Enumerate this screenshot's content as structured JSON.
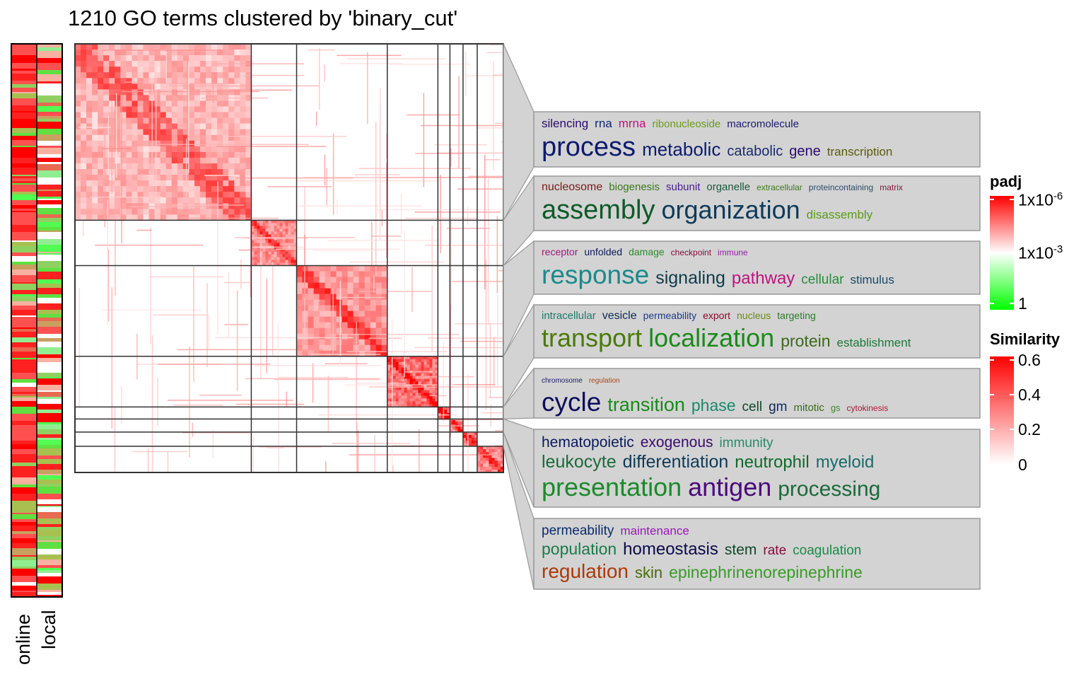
{
  "chart_data": {
    "type": "heatmap",
    "title": "1210 GO terms clustered by 'binary_cut'",
    "n_terms": 1210,
    "cluster_sizes": [
      498,
      128,
      256,
      143,
      34,
      37,
      40,
      74
    ],
    "annotation_tracks": [
      "online",
      "local"
    ],
    "similarity_legend": {
      "title": "Similarity",
      "ticks": [
        "0.6",
        "0.4",
        "0.2",
        "0"
      ],
      "range": [
        0,
        0.6
      ],
      "colors": [
        "#ffffff",
        "#ff0000"
      ]
    },
    "padj_legend": {
      "title": "padj",
      "ticks": [
        {
          "base": "1x10",
          "exp": "-6"
        },
        {
          "base": "1x10",
          "exp": "-3"
        },
        {
          "base": "1",
          "exp": ""
        }
      ],
      "colors": [
        "#ff0000",
        "#ffffff",
        "#00ff00"
      ]
    },
    "word_clouds": [
      {
        "lines": [
          [
            {
              "t": "silencing",
              "s": 17,
              "c": "#2a0a6e"
            },
            {
              "t": "rna",
              "s": 17,
              "c": "#0b2a6e"
            },
            {
              "t": "mrna",
              "s": 17,
              "c": "#c0127c"
            },
            {
              "t": "ribonucleoside",
              "s": 15,
              "c": "#6a9a1a"
            },
            {
              "t": "macromolecule",
              "s": 15,
              "c": "#1a1a6e"
            }
          ],
          [
            {
              "t": "process",
              "s": 38,
              "c": "#0d1a6e"
            },
            {
              "t": "metabolic",
              "s": 26,
              "c": "#0d1a6e"
            },
            {
              "t": "catabolic",
              "s": 20,
              "c": "#1a2a6e"
            },
            {
              "t": "gene",
              "s": 20,
              "c": "#2a0a6e"
            },
            {
              "t": "transcription",
              "s": 17,
              "c": "#5a5a0a"
            }
          ]
        ]
      },
      {
        "lines": [
          [
            {
              "t": "nucleosome",
              "s": 16,
              "c": "#7a1a1a"
            },
            {
              "t": "biogenesis",
              "s": 15,
              "c": "#3a7a1a"
            },
            {
              "t": "subunit",
              "s": 15,
              "c": "#4a1a8a"
            },
            {
              "t": "organelle",
              "s": 15,
              "c": "#1a5a3a"
            },
            {
              "t": "extracellular",
              "s": 12,
              "c": "#3a7a1a"
            },
            {
              "t": "proteincontaining",
              "s": 12,
              "c": "#2a4a6a"
            },
            {
              "t": "matrix",
              "s": 12,
              "c": "#7a1a3a"
            }
          ],
          [
            {
              "t": "assembly",
              "s": 38,
              "c": "#0e5a2a"
            },
            {
              "t": "organization",
              "s": 36,
              "c": "#0e3a5a"
            },
            {
              "t": "disassembly",
              "s": 17,
              "c": "#5a9a1a"
            }
          ]
        ]
      },
      {
        "lines": [
          [
            {
              "t": "receptor",
              "s": 14,
              "c": "#9a1a7a"
            },
            {
              "t": "unfolded",
              "s": 14,
              "c": "#0a1a5a"
            },
            {
              "t": "damage",
              "s": 14,
              "c": "#2a8a2a"
            },
            {
              "t": "checkpoint",
              "s": 12,
              "c": "#8a0a3a"
            },
            {
              "t": "immune",
              "s": 12,
              "c": "#9a1aaa"
            }
          ],
          [
            {
              "t": "response",
              "s": 37,
              "c": "#1a8a8a"
            },
            {
              "t": "signaling",
              "s": 25,
              "c": "#0e3a4a"
            },
            {
              "t": "pathway",
              "s": 24,
              "c": "#c0127c"
            },
            {
              "t": "cellular",
              "s": 19,
              "c": "#2a8a3a"
            },
            {
              "t": "stimulus",
              "s": 17,
              "c": "#1a4a6a"
            }
          ]
        ]
      },
      {
        "lines": [
          [
            {
              "t": "intracellular",
              "s": 15,
              "c": "#1a7a6a"
            },
            {
              "t": "vesicle",
              "s": 16,
              "c": "#0a2a5a"
            },
            {
              "t": "permeability",
              "s": 14,
              "c": "#1a3a8a"
            },
            {
              "t": "export",
              "s": 14,
              "c": "#8a0a2a"
            },
            {
              "t": "nucleus",
              "s": 14,
              "c": "#6a8a1a"
            },
            {
              "t": "targeting",
              "s": 14,
              "c": "#2a7a2a"
            }
          ],
          [
            {
              "t": "transport",
              "s": 36,
              "c": "#4a7a0a"
            },
            {
              "t": "localization",
              "s": 36,
              "c": "#1a8a1a"
            },
            {
              "t": "protein",
              "s": 23,
              "c": "#3a6a1a"
            },
            {
              "t": "establishment",
              "s": 17,
              "c": "#1a7a3a"
            }
          ]
        ]
      },
      {
        "lines": [
          [
            {
              "t": "chromosome",
              "s": 10,
              "c": "#1a1a6e"
            },
            {
              "t": "regulation",
              "s": 10,
              "c": "#aa4a1a"
            }
          ],
          [
            {
              "t": "cycle",
              "s": 37,
              "c": "#0d0d5e"
            },
            {
              "t": "transition",
              "s": 27,
              "c": "#1a8a1a"
            },
            {
              "t": "phase",
              "s": 23,
              "c": "#1a8a6a"
            },
            {
              "t": "cell",
              "s": 19,
              "c": "#0e4a2a"
            },
            {
              "t": "gm",
              "s": 19,
              "c": "#0a2a5a"
            },
            {
              "t": "mitotic",
              "s": 15,
              "c": "#3a6a1a"
            },
            {
              "t": "gs",
              "s": 13,
              "c": "#3a8a2a"
            },
            {
              "t": "cytokinesis",
              "s": 12,
              "c": "#aa1a3a"
            }
          ]
        ]
      },
      {
        "lines": [
          [
            {
              "t": "hematopoietic",
              "s": 21,
              "c": "#0a1a5a"
            },
            {
              "t": "exogenous",
              "s": 21,
              "c": "#3a0a6e"
            },
            {
              "t": "immunity",
              "s": 19,
              "c": "#2a8a6a"
            }
          ],
          [
            {
              "t": "leukocyte",
              "s": 25,
              "c": "#1a6a3a"
            },
            {
              "t": "differentiation",
              "s": 25,
              "c": "#0e3a5a"
            },
            {
              "t": "neutrophil",
              "s": 24,
              "c": "#0e6a2a"
            },
            {
              "t": "myeloid",
              "s": 24,
              "c": "#1a6a6a"
            }
          ],
          [
            {
              "t": "presentation",
              "s": 36,
              "c": "#1a8a2a"
            },
            {
              "t": "antigen",
              "s": 36,
              "c": "#4a0a7a"
            },
            {
              "t": "processing",
              "s": 30,
              "c": "#1a6a3a"
            }
          ]
        ]
      },
      {
        "lines": [
          [
            {
              "t": "permeability",
              "s": 19,
              "c": "#0a2a6e"
            },
            {
              "t": "maintenance",
              "s": 17,
              "c": "#9a1aba"
            }
          ],
          [
            {
              "t": "population",
              "s": 23,
              "c": "#1a7a4a"
            },
            {
              "t": "homeostasis",
              "s": 24,
              "c": "#0a0a4a"
            },
            {
              "t": "stem",
              "s": 21,
              "c": "#0e4a2a"
            },
            {
              "t": "rate",
              "s": 19,
              "c": "#8a0a3a"
            },
            {
              "t": "coagulation",
              "s": 19,
              "c": "#1a8a4a"
            }
          ],
          [
            {
              "t": "regulation",
              "s": 28,
              "c": "#aa3a0a"
            },
            {
              "t": "skin",
              "s": 22,
              "c": "#4a6a0a"
            },
            {
              "t": "epinephrinenorepinephrine",
              "s": 23,
              "c": "#3a9a2a"
            }
          ]
        ]
      }
    ]
  }
}
